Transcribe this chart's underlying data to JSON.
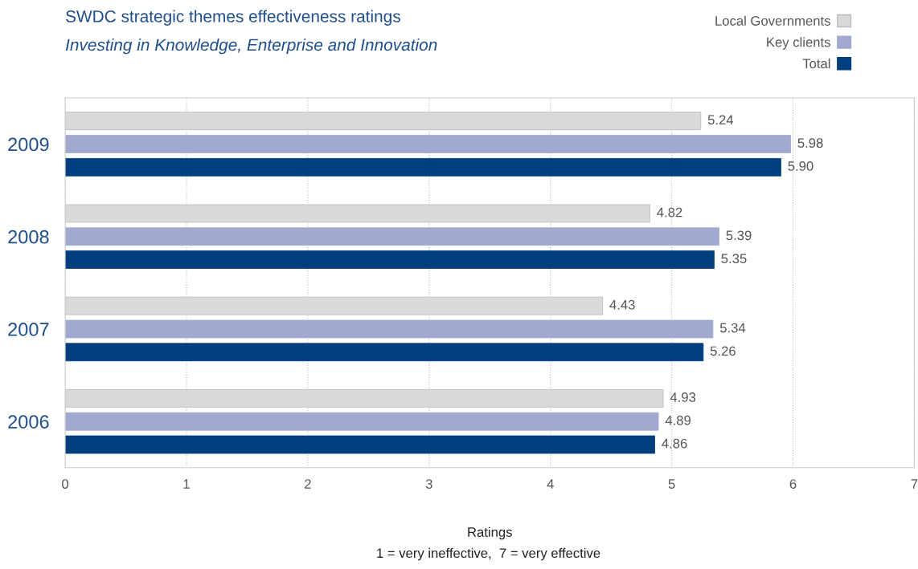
{
  "chart_data": {
    "type": "bar",
    "orientation": "horizontal",
    "title": "SWDC strategic themes effectiveness ratings",
    "subtitle": "Investing in Knowledge, Enterprise and Innovation",
    "xlabel": "Ratings",
    "annotations": [
      "1 = very ineffective,  7 = very effective"
    ],
    "categories": [
      "2009",
      "2008",
      "2007",
      "2006"
    ],
    "series": [
      {
        "name": "Local Governments",
        "color": "#d9dadc",
        "values": [
          5.24,
          4.82,
          4.43,
          4.93
        ],
        "value_labels": [
          "5.24",
          "4.82",
          "4.43",
          "4.93"
        ]
      },
      {
        "name": "Key clients",
        "color": "#a1a9cf",
        "values": [
          5.98,
          5.39,
          5.34,
          4.89
        ],
        "value_labels": [
          "5.98",
          "5.39",
          "5.34",
          "4.89"
        ]
      },
      {
        "name": "Total",
        "color": "#003f7d",
        "values": [
          5.9,
          5.35,
          5.26,
          4.86
        ],
        "value_labels": [
          "5.90",
          "5.35",
          "5.26",
          "4.86"
        ]
      }
    ],
    "xlim": [
      0,
      7
    ],
    "xticks": [
      0,
      1,
      2,
      3,
      4,
      5,
      6,
      7
    ],
    "grid": "x",
    "legend": "top right"
  }
}
